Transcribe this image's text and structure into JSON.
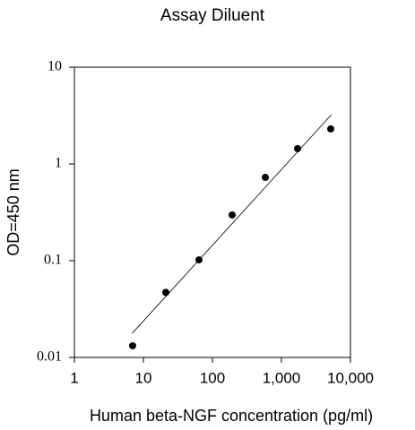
{
  "chart_data": {
    "type": "scatter",
    "title": "Assay Diluent",
    "x_label": "Human beta-NGF concentration (pg/ml)",
    "y_label": "OD=450 nm",
    "xscale": "log",
    "yscale": "log",
    "xlim": [
      1,
      10000
    ],
    "ylim": [
      0.01,
      10
    ],
    "xticks": [
      1,
      10,
      100,
      {
        "value": 1000,
        "label": "1,000"
      },
      {
        "value": 10000,
        "label": "10,000"
      }
    ],
    "yticks": [
      0.01,
      0.1,
      1,
      10
    ],
    "series": [
      {
        "x": [
          6.98,
          21.1,
          63.8,
          193,
          584,
          1713,
          5176
        ],
        "values": [
          0.0132,
          0.047,
          0.102,
          0.297,
          0.726,
          1.44,
          2.3
        ],
        "color": "#000000",
        "style": "points"
      },
      {
        "x": [
          6.9,
          5300
        ],
        "values": [
          0.0178,
          3.23
        ],
        "color": "#000000",
        "style": "line"
      }
    ]
  }
}
